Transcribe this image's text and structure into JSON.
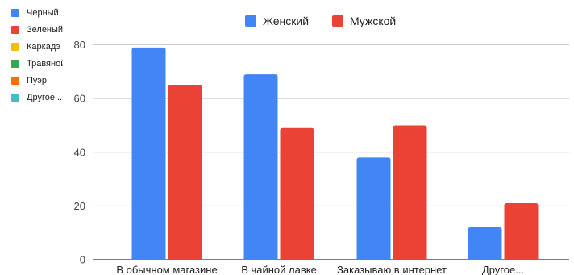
{
  "side_legend": {
    "items": [
      {
        "label": "Черный",
        "color": "#4285f4"
      },
      {
        "label": "Зеленый",
        "color": "#ea4335"
      },
      {
        "label": "Каркадэ",
        "color": "#fbbc04"
      },
      {
        "label": "Травяной",
        "color": "#34a853"
      },
      {
        "label": "Пуэр",
        "color": "#ff6d01"
      },
      {
        "label": "Другое...",
        "color": "#46bdc6"
      }
    ]
  },
  "chart_data": {
    "type": "bar",
    "categories": [
      "В обычном магазине",
      "В чайной лавке",
      "Заказываю в интернет",
      "Другое..."
    ],
    "series": [
      {
        "name": "Женский",
        "color": "#4285f4",
        "values": [
          79,
          69,
          38,
          12
        ]
      },
      {
        "name": "Мужской",
        "color": "#ea4335",
        "values": [
          65,
          49,
          50,
          21
        ]
      }
    ],
    "ylim": [
      0,
      80
    ],
    "yticks": [
      "0",
      "20",
      "40",
      "60",
      "80"
    ],
    "grid": true,
    "legend_position": "top"
  }
}
